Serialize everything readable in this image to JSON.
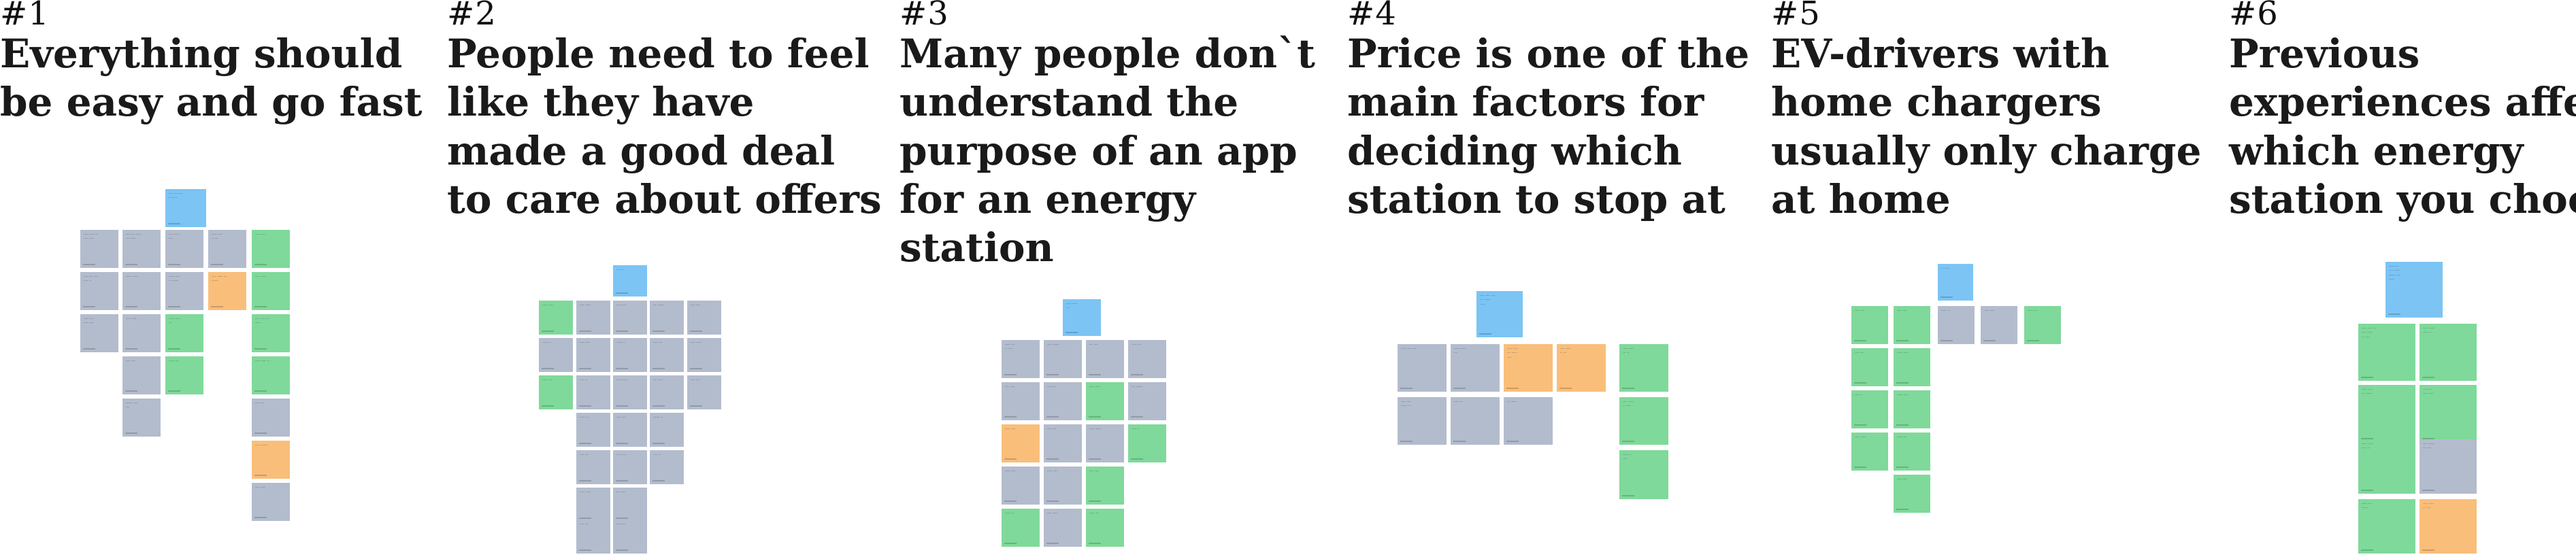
{
  "colors": {
    "blue": "#7cc4f4",
    "grey": "#b3bccd",
    "green": "#7fd99a",
    "orange": "#f9be7a"
  },
  "clusters": [
    {
      "number": "#1",
      "title_lines": [
        "Everything should",
        "be easy and go fast"
      ]
    },
    {
      "number": "#2",
      "title_lines": [
        "People need to feel",
        "like they have",
        "made a good deal",
        "to care about offers"
      ]
    },
    {
      "number": "#3",
      "title_lines": [
        "Many people don`t",
        "understand the",
        "purpose of an app",
        "for an energy",
        "station"
      ]
    },
    {
      "number": "#4",
      "title_lines": [
        "Price is one of the",
        "main factors for",
        "deciding which",
        "station to stop at"
      ]
    },
    {
      "number": "#5",
      "title_lines": [
        "EV-drivers with",
        "home chargers",
        "usually only charge",
        "at home"
      ]
    },
    {
      "number": "#6",
      "title_lines": [
        "Previous",
        "experiences affect",
        "which energy",
        "station you choose"
      ]
    }
  ]
}
